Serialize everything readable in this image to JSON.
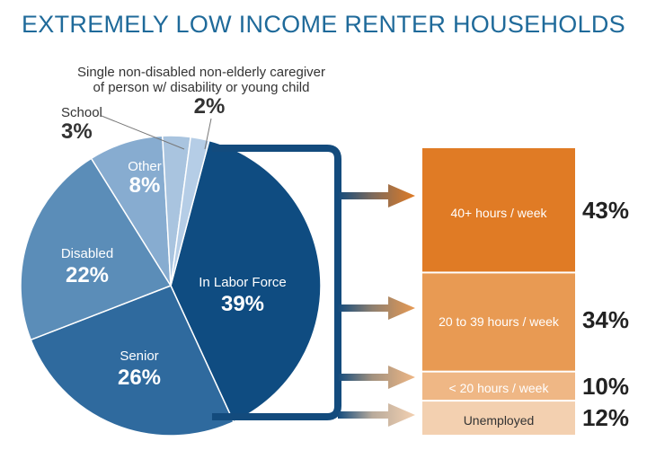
{
  "colors": {
    "title": "#1f6a9a",
    "labor_force": "#0f4c81",
    "senior": "#2f6a9e",
    "disabled": "#5b8db8",
    "other": "#87acd0",
    "school": "#a9c4df",
    "caregiver": "#b5cde6",
    "bracket": "#134b7d",
    "bar_full_time": "#e07b25",
    "bar_part_time": "#e89a53",
    "bar_under_20": "#efb785",
    "bar_unemployed": "#f3d0b0"
  },
  "chart_data": [
    {
      "type": "pie",
      "title": "EXTREMELY LOW INCOME RENTER HOUSEHOLDS",
      "slices": [
        {
          "label": "In Labor Force",
          "value": 39
        },
        {
          "label": "Senior",
          "value": 26
        },
        {
          "label": "Disabled",
          "value": 22
        },
        {
          "label": "Other",
          "value": 8
        },
        {
          "label": "School",
          "value": 3
        },
        {
          "label": "Single non-disabled non-elderly caregiver of person w/ disability or young child",
          "label_line1": "Single non-disabled non-elderly caregiver",
          "label_line2": "of person w/ disability or young child",
          "value": 2
        }
      ]
    },
    {
      "type": "bar",
      "stacked": true,
      "categories": [
        "40+ hours / week",
        "20 to 39 hours / week",
        "< 20 hours / week",
        "Unemployed"
      ],
      "values": [
        43,
        34,
        10,
        12
      ],
      "value_labels": [
        "43%",
        "34%",
        "10%",
        "12%"
      ]
    }
  ]
}
